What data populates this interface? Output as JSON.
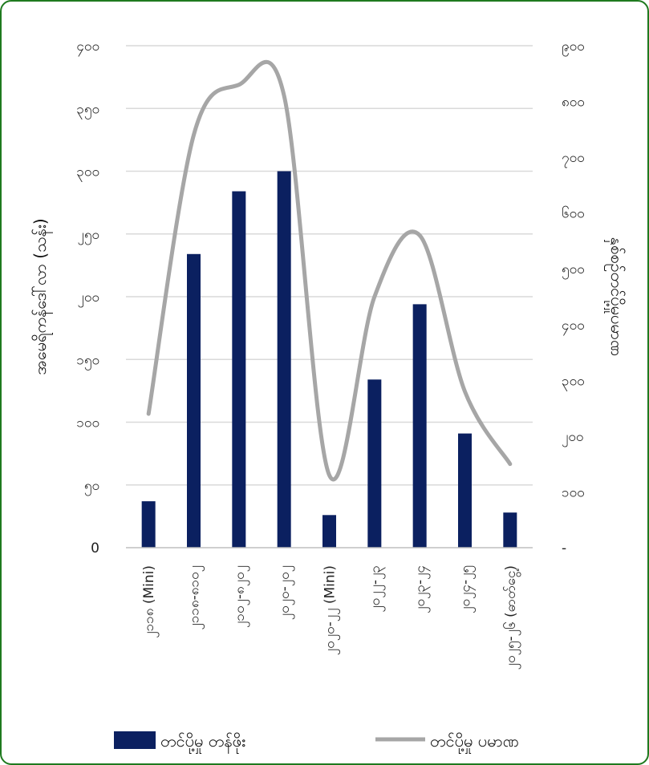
{
  "colors": {
    "bar": "#0b2060",
    "line": "#a6a6a6",
    "grid": "#d9d9d9",
    "border": "#1f7a1f"
  },
  "chart_data": {
    "type": "bar",
    "categories": [
      "၂၁၁၈ (Mini)",
      "၂၁၁၈-၈၁၀၂",
      "၂၁၀၂-၈၂၀၂",
      "၂၀၂၀-၂၀၂",
      "၂၀၂၀-၂၂ (Mini)",
      "၂၀၂၂-၂၃",
      "၂၀၂၃-၂၄",
      "၂၀၂၄-၂၅",
      "၂၀၂၅-၂၆ (ဓာတ်ငွေ့)"
    ],
    "series": [
      {
        "name": "တင်ပို့မှု တန်ဖိုး",
        "kind": "bar",
        "axis": "left",
        "values": [
          37,
          234,
          284,
          300,
          26,
          134,
          194,
          91,
          28
        ]
      },
      {
        "name": "တင်ပို့မှု ပမာဏ",
        "kind": "line",
        "axis": "right",
        "values": [
          240,
          740,
          830,
          810,
          130,
          450,
          560,
          280,
          150
        ]
      }
    ],
    "ylabel_left": "အမေရိကန်ဒေါ်လာ (သန်း)",
    "ylabel_right": "နှစ်စဉ်တင်ပို့မှုပမာဏ",
    "y_left": {
      "min": 0,
      "max": 400,
      "step": 50,
      "ticks": [
        "0",
        "၅၀",
        "၁၀၀",
        "၁၅၀",
        "၂၀၀",
        "၂၅၀",
        "၃၀၀",
        "၃၅၀",
        "၄၀၀"
      ]
    },
    "y_right": {
      "min": 0,
      "max": 900,
      "step": 100,
      "ticks": [
        "-",
        "၁၀၀",
        "၂၀၀",
        "၃၀၀",
        "၄၀၀",
        "၅၀၀",
        "၆၀၀",
        "၇၀၀",
        "၈၀၀",
        "၉၀၀"
      ]
    },
    "grid": true,
    "legend_position": "bottom"
  }
}
